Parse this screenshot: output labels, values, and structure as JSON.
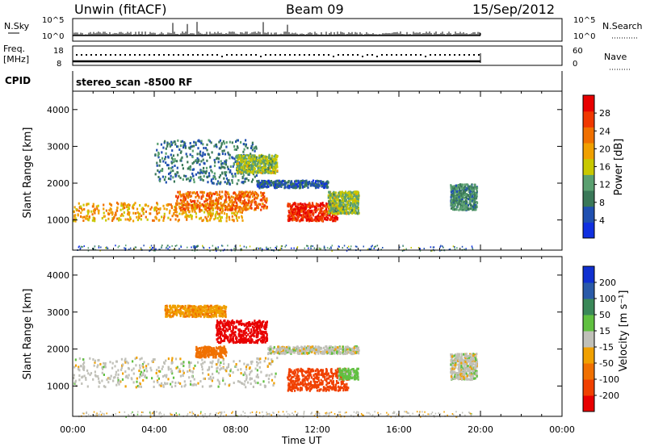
{
  "header": {
    "station": "Unwin (fitACF)",
    "beam": "Beam 09",
    "date": "15/Sep/2012"
  },
  "top_panels": {
    "nsky_label": "N.Sky",
    "nsearch_label": "N.Search",
    "noise_ticks": [
      "10^5",
      "10^0"
    ],
    "freq_label": "Freq.",
    "freq_unit": "[MHz]",
    "freq_ticks": [
      "18",
      "8"
    ],
    "nave_label": "Nave",
    "nave_ticks": [
      "60",
      "0"
    ],
    "cpid_label": "CPID",
    "cpid_value": "stereo_scan -8500 RF"
  },
  "colors": {
    "power_scale": [
      "#1030e0",
      "#2050b0",
      "#3a7858",
      "#5aa070",
      "#c8c800",
      "#f0a000",
      "#f07000",
      "#f03800",
      "#e80000"
    ],
    "velocity_scale": [
      "#e80000",
      "#f04000",
      "#f07000",
      "#f0a000",
      "#e8b830",
      "#c0c0b8",
      "#c0c0b8",
      "#60c040",
      "#3a8858",
      "#2a5aa8",
      "#1030d0"
    ]
  },
  "chart_data": [
    {
      "type": "heatmap",
      "name": "power",
      "xlabel": "",
      "ylabel": "Slant Range [km]",
      "xlim": [
        0,
        24
      ],
      "ylim": [
        180,
        4500
      ],
      "yticks": [
        1000,
        2000,
        3000,
        4000
      ],
      "x_tick_labels": [],
      "colorbar_label": "Power [dB]",
      "colorbar_ticks": [
        "4",
        "8",
        "12",
        "16",
        "20",
        "24",
        "28"
      ],
      "colorbar_range": [
        0,
        32
      ],
      "scatter_regions": [
        {
          "t_start": 0.0,
          "t_end": 8.5,
          "r_start": 1000,
          "r_end": 1500,
          "value": 20
        },
        {
          "t_start": 5.0,
          "t_end": 9.5,
          "r_start": 1300,
          "r_end": 1800,
          "value": 24
        },
        {
          "t_start": 4.0,
          "t_end": 9.0,
          "r_start": 2000,
          "r_end": 3200,
          "value": 8
        },
        {
          "t_start": 8.0,
          "t_end": 10.0,
          "r_start": 2300,
          "r_end": 2800,
          "value": 14
        },
        {
          "t_start": 9.0,
          "t_end": 12.5,
          "r_start": 1900,
          "r_end": 2100,
          "value": 6
        },
        {
          "t_start": 10.5,
          "t_end": 13.0,
          "r_start": 1000,
          "r_end": 1500,
          "value": 28
        },
        {
          "t_start": 12.5,
          "t_end": 14.0,
          "r_start": 1200,
          "r_end": 1800,
          "value": 14
        },
        {
          "t_start": 18.5,
          "t_end": 19.8,
          "r_start": 1300,
          "r_end": 2000,
          "value": 10
        }
      ]
    },
    {
      "type": "heatmap",
      "name": "velocity",
      "xlabel": "Time UT",
      "ylabel": "Slant Range [km]",
      "xlim": [
        0,
        24
      ],
      "ylim": [
        180,
        4500
      ],
      "yticks": [
        1000,
        2000,
        3000,
        4000
      ],
      "x_tick_labels": [
        "00:00",
        "04:00",
        "08:00",
        "12:00",
        "16:00",
        "20:00",
        "00:00"
      ],
      "colorbar_label": "Velocity [m s⁻¹]",
      "colorbar_ticks": [
        "-200",
        "-100",
        "-50",
        "-15",
        "15",
        "50",
        "100",
        "200"
      ],
      "scatter_regions": [
        {
          "t_start": 0.0,
          "t_end": 10.0,
          "r_start": 1000,
          "r_end": 1800,
          "value": 0
        },
        {
          "t_start": 4.5,
          "t_end": 7.5,
          "r_start": 2900,
          "r_end": 3200,
          "value": -40
        },
        {
          "t_start": 7.0,
          "t_end": 9.5,
          "r_start": 2200,
          "r_end": 2800,
          "value": -250
        },
        {
          "t_start": 6.0,
          "t_end": 7.5,
          "r_start": 1800,
          "r_end": 2100,
          "value": -80
        },
        {
          "t_start": 9.5,
          "t_end": 14.0,
          "r_start": 1900,
          "r_end": 2100,
          "value": 0
        },
        {
          "t_start": 10.5,
          "t_end": 13.5,
          "r_start": 900,
          "r_end": 1500,
          "value": -120
        },
        {
          "t_start": 13.0,
          "t_end": 14.0,
          "r_start": 1200,
          "r_end": 1500,
          "value": 30
        },
        {
          "t_start": 18.5,
          "t_end": 19.8,
          "r_start": 1200,
          "r_end": 1900,
          "value": 0
        }
      ]
    }
  ]
}
